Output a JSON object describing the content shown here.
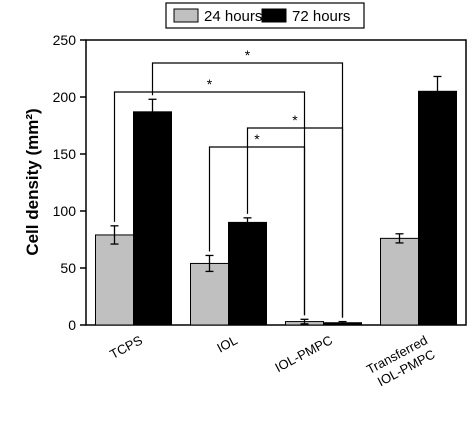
{
  "chart_data": {
    "type": "bar",
    "categories": [
      "TCPS",
      "IOL",
      "IOL-PMPC",
      "Transferred\nIOL-PMPC"
    ],
    "series": [
      {
        "name": "24 hours",
        "color": "#c0c0c0",
        "values": [
          79,
          54,
          3,
          76
        ],
        "errors": [
          8,
          7,
          2,
          4
        ]
      },
      {
        "name": "72 hours",
        "color": "#000000",
        "values": [
          187,
          90,
          2,
          205
        ],
        "errors": [
          11,
          4,
          1,
          13
        ]
      }
    ],
    "ylabel": "Cell density (mm²)",
    "ylim": [
      0,
      250
    ],
    "yticks": [
      0,
      50,
      100,
      150,
      200,
      250
    ],
    "legend_position": "top",
    "significance": [
      {
        "from": [
          0,
          1
        ],
        "to": [
          2,
          1
        ],
        "label": "*"
      },
      {
        "from": [
          0,
          0
        ],
        "to": [
          2,
          0
        ],
        "label": "*"
      },
      {
        "from": [
          1,
          1
        ],
        "to": [
          2,
          1
        ],
        "label": "*"
      },
      {
        "from": [
          1,
          0
        ],
        "to": [
          2,
          0
        ],
        "label": "*"
      }
    ]
  }
}
